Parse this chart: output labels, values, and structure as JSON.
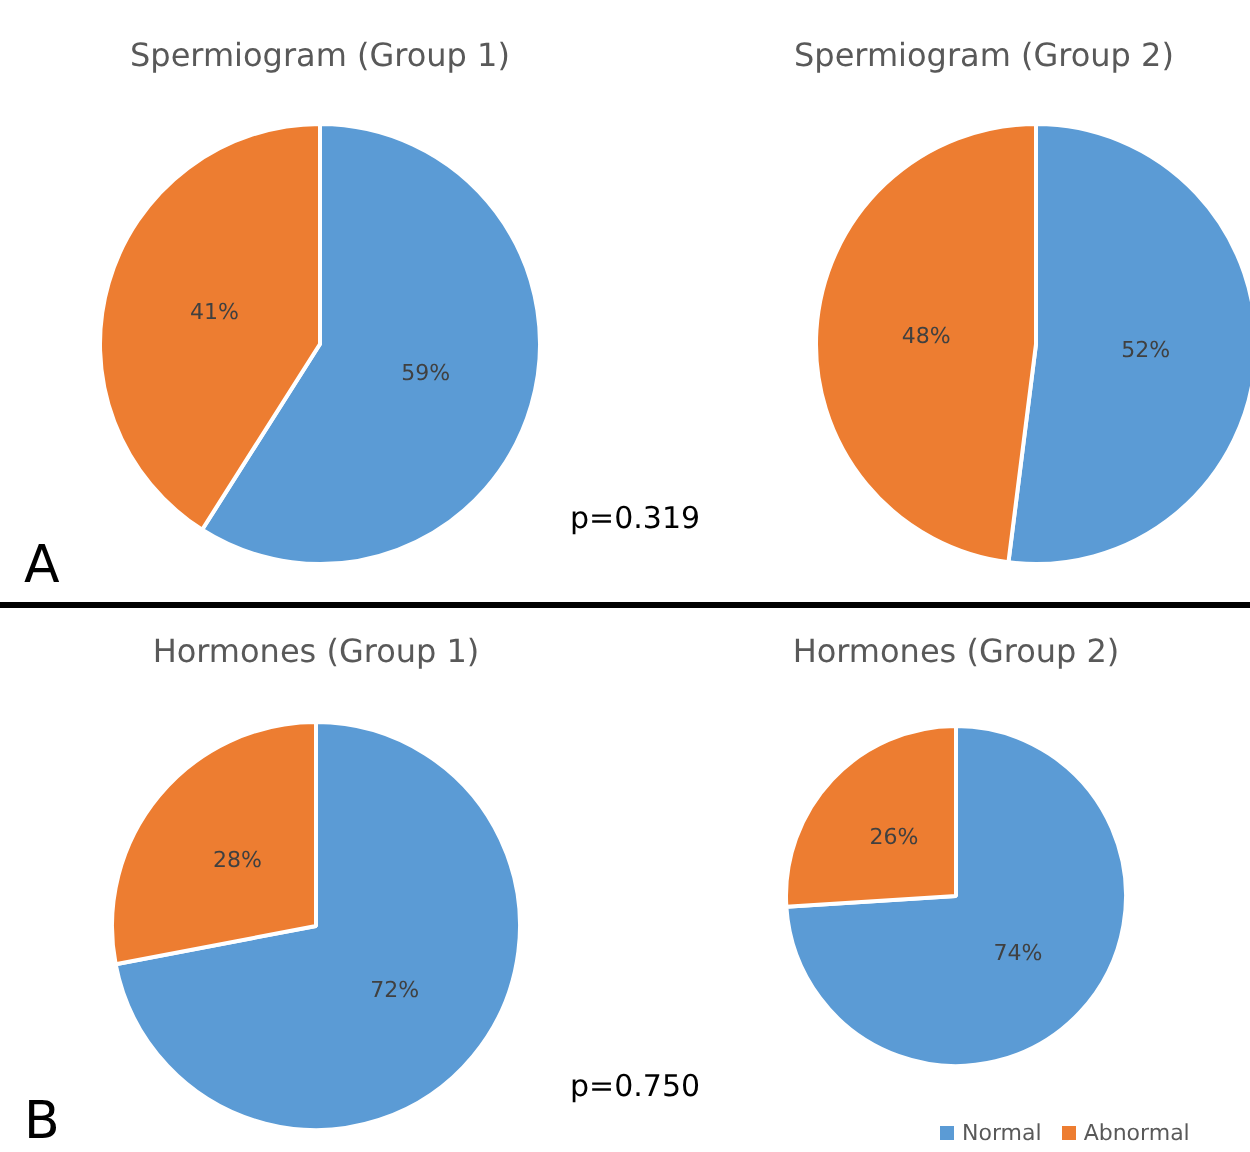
{
  "chart_data": [
    {
      "type": "pie",
      "title": "Spermiogram (Group 1)",
      "categories": [
        null,
        null
      ],
      "values": [
        59,
        41
      ],
      "colors": [
        "#5b9bd5",
        "#ed7d31"
      ],
      "value_labels": [
        "59%",
        "41%"
      ],
      "annotations": [
        "A"
      ],
      "legend": false
    },
    {
      "type": "pie",
      "title": "Spermiogram (Group 2)",
      "categories": [
        null,
        null
      ],
      "values": [
        52,
        48
      ],
      "colors": [
        "#5b9bd5",
        "#ed7d31"
      ],
      "value_labels": [
        "52%",
        "48%"
      ],
      "annotations": [
        "p=0.319"
      ],
      "legend": false
    },
    {
      "type": "pie",
      "title": "Hormones (Group 1)",
      "categories": [
        null,
        null
      ],
      "values": [
        72,
        28
      ],
      "colors": [
        "#5b9bd5",
        "#ed7d31"
      ],
      "value_labels": [
        "72%",
        "28%"
      ],
      "annotations": [
        "B"
      ],
      "legend": false
    },
    {
      "type": "pie",
      "title": "Hormones (Group 2)",
      "categories": [
        "Normal",
        "Abnormal"
      ],
      "values": [
        74,
        26
      ],
      "colors": [
        "#5b9bd5",
        "#ed7d31"
      ],
      "value_labels": [
        "74%",
        "26%"
      ],
      "annotations": [
        "p=0.750"
      ],
      "legend": "bottom right"
    }
  ]
}
